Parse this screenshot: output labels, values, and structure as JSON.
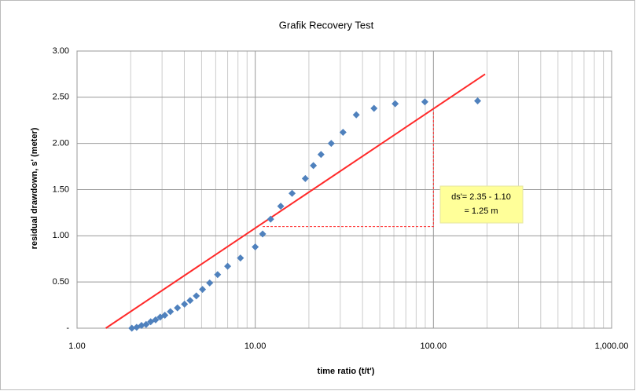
{
  "chart_data": {
    "type": "scatter",
    "title": "Grafik Recovery Test",
    "xlabel": "time ratio (t/t')",
    "ylabel": "residual drawdown, s' (meter)",
    "xscale": "log",
    "xlim": [
      1,
      1000
    ],
    "ylim": [
      0,
      3
    ],
    "xticks": [
      {
        "value": 1,
        "label": "1.00"
      },
      {
        "value": 10,
        "label": "10.00"
      },
      {
        "value": 100,
        "label": "100.00"
      },
      {
        "value": 1000,
        "label": "1,000.00"
      }
    ],
    "yticks": [
      {
        "value": 0,
        "label": "-"
      },
      {
        "value": 0.5,
        "label": "0.50"
      },
      {
        "value": 1,
        "label": "1.00"
      },
      {
        "value": 1.5,
        "label": "1.50"
      },
      {
        "value": 2,
        "label": "2.00"
      },
      {
        "value": 2.5,
        "label": "2.50"
      },
      {
        "value": 3,
        "label": "3.00"
      }
    ],
    "grid": true,
    "series": [
      {
        "color": "#4f81bd",
        "x": [
          2.03,
          2.16,
          2.3,
          2.44,
          2.59,
          2.76,
          2.93,
          3.11,
          3.34,
          3.66,
          4.01,
          4.31,
          4.67,
          5.06,
          5.55,
          6.15,
          7.0,
          8.26,
          10.0,
          11.0,
          12.2,
          13.9,
          16.1,
          19.1,
          21.2,
          23.4,
          26.7,
          31.1,
          36.9,
          46.4,
          61.0,
          89.5,
          177
        ],
        "values": [
          0,
          0.01,
          0.03,
          0.04,
          0.07,
          0.09,
          0.12,
          0.14,
          0.18,
          0.22,
          0.26,
          0.3,
          0.35,
          0.42,
          0.49,
          0.58,
          0.67,
          0.76,
          0.88,
          1.02,
          1.18,
          1.32,
          1.46,
          1.62,
          1.76,
          1.88,
          2.0,
          2.12,
          2.31,
          2.38,
          2.43,
          2.45,
          2.46
        ]
      }
    ],
    "fit_line": {
      "color": "#ff2a2a",
      "x": [
        1.45,
        195
      ],
      "values": [
        0,
        2.75
      ]
    },
    "guide_line": {
      "color": "#ff2a2a",
      "x": [
        11,
        100,
        100
      ],
      "values": [
        1.1,
        1.1,
        2.35
      ]
    },
    "annotation": [
      "ds'= 2.35 - 1.10",
      "= 1.25 m"
    ]
  }
}
